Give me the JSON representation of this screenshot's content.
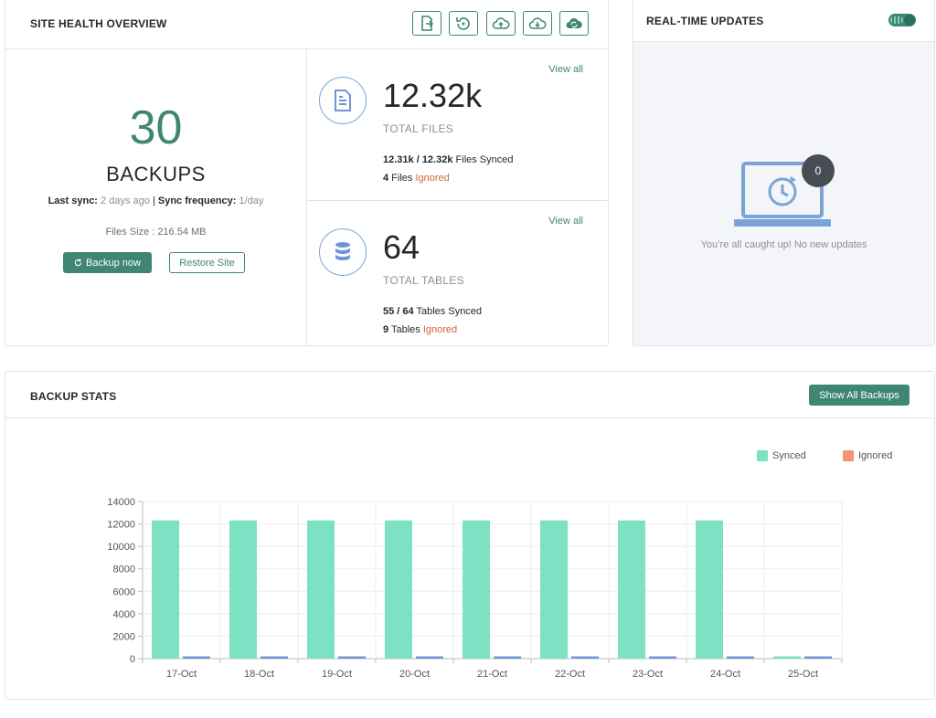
{
  "site_health": {
    "title": "SITE HEALTH OVERVIEW",
    "toolbar_icons": [
      "export-file-icon",
      "restore-history-icon",
      "cloud-upload-icon",
      "cloud-download-icon",
      "cloud-sync-icon"
    ],
    "backups": {
      "count": "30",
      "label": "BACKUPS",
      "last_sync_label": "Last sync:",
      "last_sync_value": "2 days ago",
      "separator": "|",
      "frequency_label": "Sync frequency:",
      "frequency_value": "1/day",
      "files_size": "Files Size : 216.54 MB",
      "backup_now": "Backup now",
      "restore_site": "Restore Site"
    },
    "files": {
      "view_all": "View all",
      "number": "12.32k",
      "label": "TOTAL FILES",
      "synced_bold": "12.31k / 12.32k",
      "synced_text": " Files Synced",
      "ignored_count": "4",
      "ignored_prefix": " Files ",
      "ignored_word": "Ignored"
    },
    "tables": {
      "view_all": "View all",
      "number": "64",
      "label": "TOTAL TABLES",
      "synced_bold": "55 / 64",
      "synced_text": " Tables Synced",
      "ignored_count": "9",
      "ignored_prefix": " Tables ",
      "ignored_word": "Ignored"
    }
  },
  "realtime": {
    "title": "REAL-TIME UPDATES",
    "toggle_on": true,
    "badge_count": "0",
    "message": "You’re all caught up! No new updates"
  },
  "backup_stats": {
    "title": "BACKUP STATS",
    "show_all": "Show All Backups"
  },
  "colors": {
    "accent": "#3f8674",
    "synced": "#7de2c3",
    "ignored": "#f0956f",
    "ignored_bar": "#6f95d6",
    "ignored_text": "#c9683f"
  },
  "chart_data": {
    "type": "bar",
    "categories": [
      "17-Oct",
      "18-Oct",
      "19-Oct",
      "20-Oct",
      "21-Oct",
      "22-Oct",
      "23-Oct",
      "24-Oct",
      "25-Oct"
    ],
    "series": [
      {
        "name": "Synced",
        "values": [
          12310,
          12310,
          12310,
          12310,
          12310,
          12310,
          12310,
          12310,
          200
        ]
      },
      {
        "name": "Ignored",
        "values": [
          200,
          200,
          200,
          200,
          200,
          200,
          200,
          200,
          200
        ]
      }
    ],
    "ylim": [
      0,
      14000
    ],
    "yticks": [
      0,
      2000,
      4000,
      6000,
      8000,
      10000,
      12000,
      14000
    ],
    "legend": "top-right",
    "grid": true
  }
}
